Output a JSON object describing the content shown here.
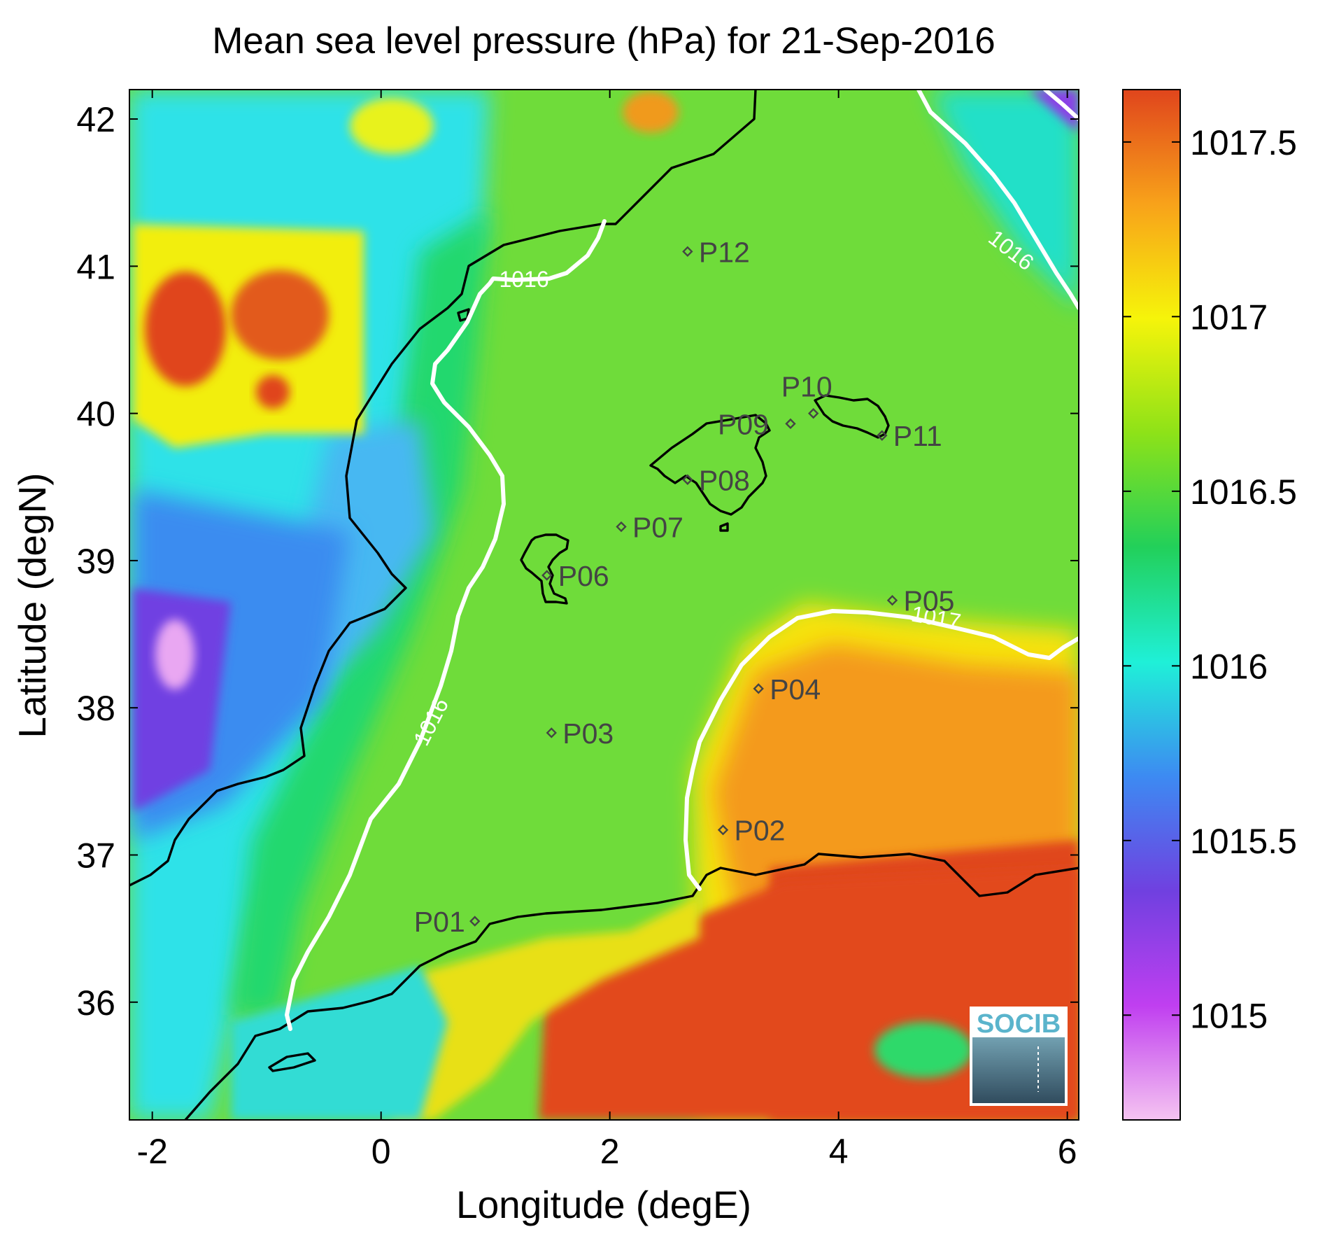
{
  "chart_data": {
    "type": "heatmap",
    "title": "Mean sea level pressure (hPa) for 21-Sep-2016",
    "xlabel": "Longitude (degE)",
    "ylabel": "Latitude (degN)",
    "xlim": [
      -2.2,
      6.1
    ],
    "ylim": [
      35.2,
      42.2
    ],
    "xticks": [
      -2,
      0,
      2,
      4,
      6
    ],
    "yticks": [
      36,
      37,
      38,
      39,
      40,
      41,
      42
    ],
    "colorbar": {
      "range": [
        1014.7,
        1017.65
      ],
      "ticks": [
        1015,
        1015.5,
        1016,
        1016.5,
        1017,
        1017.5
      ],
      "colors": [
        "#f5c4f1",
        "#c03ff0",
        "#7040e0",
        "#3d8af2",
        "#1ff0d8",
        "#22d05a",
        "#8ee218",
        "#f6f40a",
        "#f8a21a",
        "#e0451c"
      ]
    },
    "contour_labels": [
      {
        "text": "1016",
        "lon": 1.25,
        "lat": 40.9,
        "angle": 0
      },
      {
        "text": "1016",
        "lon": 0.45,
        "lat": 37.9,
        "angle": -63
      },
      {
        "text": "1016",
        "lon": 5.5,
        "lat": 41.1,
        "angle": 38
      },
      {
        "text": "1017",
        "lon": 4.85,
        "lat": 38.6,
        "angle": 10
      }
    ],
    "stations": [
      {
        "name": "P01",
        "lon": 0.82,
        "lat": 36.55
      },
      {
        "name": "P02",
        "lon": 2.99,
        "lat": 37.17
      },
      {
        "name": "P03",
        "lon": 1.49,
        "lat": 37.83
      },
      {
        "name": "P04",
        "lon": 3.3,
        "lat": 38.13
      },
      {
        "name": "P05",
        "lon": 4.47,
        "lat": 38.73
      },
      {
        "name": "P06",
        "lon": 1.45,
        "lat": 38.9
      },
      {
        "name": "P07",
        "lon": 2.1,
        "lat": 39.23
      },
      {
        "name": "P08",
        "lon": 2.68,
        "lat": 39.55
      },
      {
        "name": "P09",
        "lon": 3.58,
        "lat": 39.93
      },
      {
        "name": "P10",
        "lon": 3.78,
        "lat": 40.0
      },
      {
        "name": "P11",
        "lon": 4.38,
        "lat": 39.85
      },
      {
        "name": "P12",
        "lon": 2.68,
        "lat": 41.1
      }
    ]
  },
  "logo": {
    "text": "SOCIB"
  }
}
